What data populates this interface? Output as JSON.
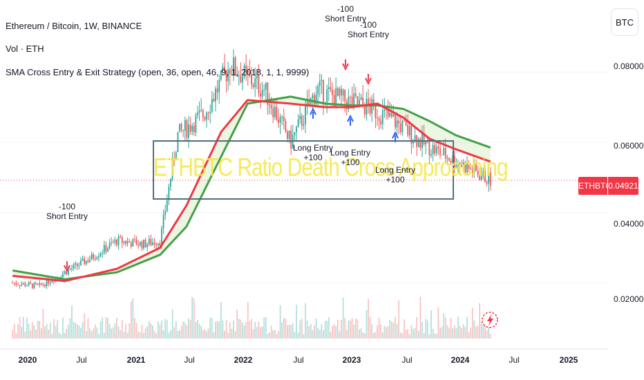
{
  "chart_data": {
    "type": "candlestick",
    "title": "Ethereum / Bitcoin, 1W, BINANCE",
    "volume_label": "Vol · ETH",
    "strategy_label": "SMA Cross Entry & Exit Strategy (open, 36, open, 46, 9, 1, 2018, 1, 1, 9999)",
    "symbol": "ETHBTC",
    "last_price": "0.04921",
    "currency_button": "BTC",
    "y_ticks": [
      "0.08000",
      "0.06000",
      "0.04000",
      "0.02000"
    ],
    "ylim": [
      0.012,
      0.095
    ],
    "x_ticks": [
      {
        "label": "2020",
        "bold": true
      },
      {
        "label": "Jul",
        "bold": false
      },
      {
        "label": "2021",
        "bold": true
      },
      {
        "label": "Jul",
        "bold": false
      },
      {
        "label": "2022",
        "bold": true
      },
      {
        "label": "Jul",
        "bold": false
      },
      {
        "label": "2023",
        "bold": true
      },
      {
        "label": "Jul",
        "bold": false
      },
      {
        "label": "2024",
        "bold": true
      },
      {
        "label": "Jul",
        "bold": false
      },
      {
        "label": "2025",
        "bold": true
      }
    ],
    "price_series": {
      "x": [
        "2019-10",
        "2020-01",
        "2020-04",
        "2020-07",
        "2020-10",
        "2021-01",
        "2021-03",
        "2021-05",
        "2021-08",
        "2021-11",
        "2021-12",
        "2022-03",
        "2022-06",
        "2022-09",
        "2022-12",
        "2023-03",
        "2023-06",
        "2023-09",
        "2023-12",
        "2024-03",
        "2024-05"
      ],
      "close": [
        0.02,
        0.019,
        0.023,
        0.027,
        0.032,
        0.031,
        0.032,
        0.062,
        0.068,
        0.082,
        0.08,
        0.075,
        0.06,
        0.075,
        0.072,
        0.07,
        0.066,
        0.06,
        0.056,
        0.052,
        0.0492
      ]
    },
    "sma_fast": {
      "name": "",
      "color": "#f23645",
      "x": [
        "2019-10",
        "2020-04",
        "2020-10",
        "2021-03",
        "2021-06",
        "2021-10",
        "2022-01",
        "2022-06",
        "2022-10",
        "2023-01",
        "2023-04",
        "2023-07",
        "2023-10",
        "2024-01",
        "2024-05"
      ],
      "values": [
        0.022,
        0.0205,
        0.024,
        0.03,
        0.042,
        0.063,
        0.072,
        0.071,
        0.07,
        0.07,
        0.071,
        0.067,
        0.061,
        0.058,
        0.0545
      ]
    },
    "sma_slow": {
      "name": "",
      "color": "#43a047",
      "x": [
        "2019-10",
        "2020-04",
        "2020-10",
        "2021-03",
        "2021-06",
        "2021-10",
        "2022-01",
        "2022-06",
        "2022-10",
        "2023-01",
        "2023-04",
        "2023-07",
        "2023-10",
        "2024-01",
        "2024-05"
      ],
      "values": [
        0.0235,
        0.021,
        0.023,
        0.028,
        0.036,
        0.056,
        0.071,
        0.073,
        0.071,
        0.0705,
        0.0705,
        0.0695,
        0.066,
        0.062,
        0.0585
      ]
    },
    "annotations": [
      {
        "lines": [
          "-100",
          "Short Entry"
        ],
        "kind": "short"
      },
      {
        "lines": [
          "-100",
          "Short Entry"
        ],
        "kind": "short"
      },
      {
        "lines": [
          "-100",
          "Short Entry"
        ],
        "kind": "short"
      },
      {
        "lines": [
          "Long Entry",
          "+100"
        ],
        "kind": "long"
      },
      {
        "lines": [
          "Long Entry",
          "+100"
        ],
        "kind": "long"
      },
      {
        "lines": [
          "Long Entry",
          "+100"
        ],
        "kind": "long"
      }
    ],
    "overlay_text": "ETHBTC Ratio Death Cross Approaching",
    "colors": {
      "up": "#26a69a",
      "down": "#ef5350",
      "short_arrow": "#f23645",
      "long_arrow": "#2962ff"
    }
  }
}
